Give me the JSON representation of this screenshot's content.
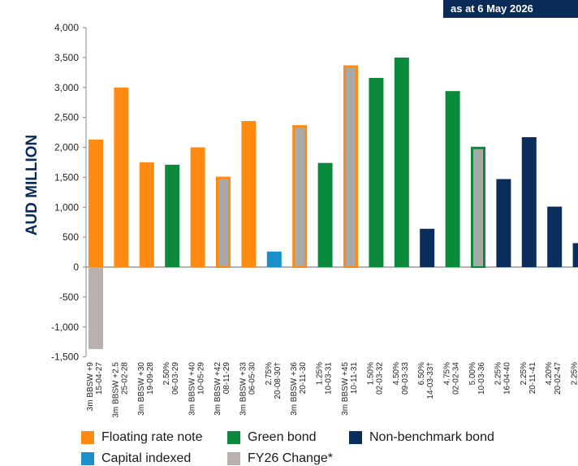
{
  "badge": "as at 6 May 2026",
  "colors": {
    "floating": "#ff8a12",
    "green": "#0b8a3b",
    "nonbench": "#0a2e5c",
    "capital": "#1b8fc8",
    "change": "#b8b1ad",
    "overlay": "#a9a9a9",
    "axis_title": "#0a2a57"
  },
  "legend": [
    {
      "label": "Floating rate note",
      "color_key": "floating"
    },
    {
      "label": "Green bond",
      "color_key": "green"
    },
    {
      "label": "Non-benchmark bond",
      "color_key": "nonbench"
    },
    {
      "label": "Capital indexed",
      "color_key": "capital"
    },
    {
      "label": "FY26 Change*",
      "color_key": "change"
    }
  ],
  "chart_data": {
    "type": "bar",
    "ylabel": "AUD MILLION",
    "ylim": [
      -1500,
      4000
    ],
    "yticks": [
      "4,000",
      "3,500",
      "3,000",
      "2,500",
      "2,000",
      "1,500",
      "1,000",
      "500",
      "0",
      "-500",
      "-1,000",
      "-1,500"
    ],
    "ytick_values": [
      4000,
      3500,
      3000,
      2500,
      2000,
      1500,
      1000,
      500,
      0,
      -500,
      -1000,
      -1500
    ],
    "categories": [
      [
        "3m BBSW +9",
        "15-04-27"
      ],
      [
        "3m BBSW +2.5",
        "25-02-28"
      ],
      [
        "3m BBSW +30",
        "19-09-28"
      ],
      [
        "2.50%",
        "06-03-29"
      ],
      [
        "3m BBSW +40",
        "10-05-29"
      ],
      [
        "3m BBSW +42",
        "08-11-29"
      ],
      [
        "3m BBSW +33",
        "06-05-30"
      ],
      [
        "2.75%",
        "20-08-30†"
      ],
      [
        "3m BBSW +36",
        "20-11-30"
      ],
      [
        "1.25%",
        "10-03-31"
      ],
      [
        "3m BBSW +45",
        "10-11-31"
      ],
      [
        "1.50%",
        "02-03-32"
      ],
      [
        "4.50%",
        "09-03-33"
      ],
      [
        "6.50%",
        "14-03-33†"
      ],
      [
        "4.75%",
        "02-02-34"
      ],
      [
        "5.00%",
        "10-03-36"
      ],
      [
        "2.25%",
        "16-04-40"
      ],
      [
        "2.25%",
        "20-11-41"
      ],
      [
        "4.20%",
        "20-02-47"
      ],
      [
        "2.25%",
        ""
      ]
    ],
    "series": [
      {
        "name": "Floating rate note",
        "values": [
          2130,
          3000,
          1750,
          null,
          2000,
          1510,
          2440,
          null,
          2370,
          null,
          3370,
          null,
          null,
          null,
          null,
          null,
          null,
          null,
          null,
          null
        ]
      },
      {
        "name": "Green bond",
        "values": [
          null,
          null,
          null,
          1710,
          null,
          null,
          null,
          null,
          null,
          1740,
          null,
          3160,
          3500,
          null,
          2940,
          2010,
          null,
          null,
          null,
          null
        ]
      },
      {
        "name": "Non-benchmark bond",
        "values": [
          null,
          null,
          null,
          null,
          null,
          null,
          null,
          null,
          null,
          null,
          null,
          null,
          null,
          640,
          null,
          null,
          1470,
          2170,
          1010,
          400
        ]
      },
      {
        "name": "Capital indexed",
        "values": [
          null,
          null,
          null,
          null,
          null,
          null,
          null,
          260,
          null,
          null,
          null,
          null,
          null,
          null,
          null,
          null,
          null,
          null,
          null,
          null
        ]
      },
      {
        "name": "FY26 Change*",
        "values": [
          -1370,
          null,
          null,
          null,
          null,
          1510,
          null,
          null,
          2370,
          null,
          3370,
          null,
          null,
          null,
          null,
          2010,
          null,
          null,
          null,
          null
        ]
      }
    ]
  }
}
